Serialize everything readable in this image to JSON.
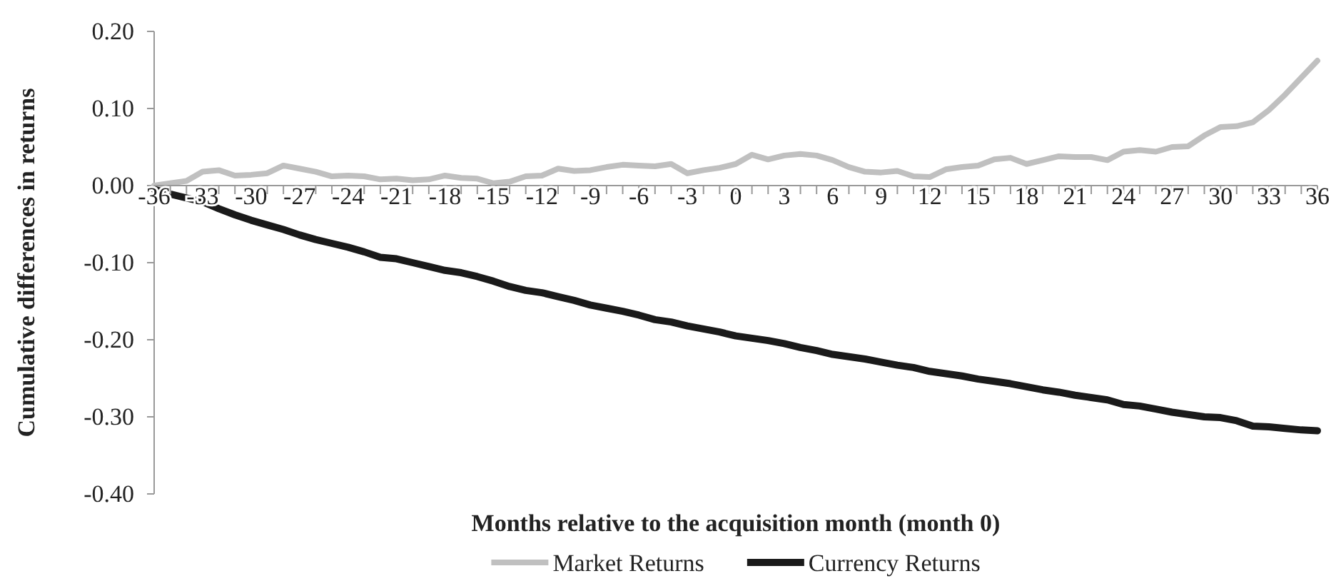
{
  "chart_data": {
    "type": "line",
    "xlabel": "Months relative to the acquisition month (month 0)",
    "ylabel": "Cumulative differences in returns",
    "x": [
      -36,
      -35,
      -34,
      -33,
      -32,
      -31,
      -30,
      -29,
      -28,
      -27,
      -26,
      -25,
      -24,
      -23,
      -22,
      -21,
      -20,
      -19,
      -18,
      -17,
      -16,
      -15,
      -14,
      -13,
      -12,
      -11,
      -10,
      -9,
      -8,
      -7,
      -6,
      -5,
      -4,
      -3,
      -2,
      -1,
      0,
      1,
      2,
      3,
      4,
      5,
      6,
      7,
      8,
      9,
      10,
      11,
      12,
      13,
      14,
      15,
      16,
      17,
      18,
      19,
      20,
      21,
      22,
      23,
      24,
      25,
      26,
      27,
      28,
      29,
      30,
      31,
      32,
      33,
      34,
      35,
      36
    ],
    "series": [
      {
        "name": "Market Returns",
        "color": "#c0c0c0",
        "values": [
          0.0,
          0.003,
          0.006,
          0.018,
          0.02,
          0.013,
          0.014,
          0.016,
          0.026,
          0.022,
          0.018,
          0.012,
          0.013,
          0.012,
          0.008,
          0.009,
          0.007,
          0.008,
          0.013,
          0.01,
          0.009,
          0.003,
          0.005,
          0.012,
          0.013,
          0.022,
          0.019,
          0.02,
          0.024,
          0.027,
          0.026,
          0.025,
          0.028,
          0.016,
          0.02,
          0.023,
          0.028,
          0.04,
          0.034,
          0.039,
          0.041,
          0.039,
          0.033,
          0.024,
          0.018,
          0.017,
          0.019,
          0.012,
          0.011,
          0.021,
          0.024,
          0.026,
          0.034,
          0.036,
          0.028,
          0.033,
          0.038,
          0.037,
          0.037,
          0.033,
          0.044,
          0.046,
          0.044,
          0.05,
          0.051,
          0.065,
          0.076,
          0.077,
          0.082,
          0.098,
          0.118,
          0.14,
          0.162
        ]
      },
      {
        "name": "Currency Returns",
        "color": "#1a1a1a",
        "values": [
          -0.005,
          -0.011,
          -0.016,
          -0.021,
          -0.03,
          -0.038,
          -0.045,
          -0.051,
          -0.057,
          -0.064,
          -0.07,
          -0.075,
          -0.08,
          -0.086,
          -0.093,
          -0.095,
          -0.1,
          -0.105,
          -0.11,
          -0.113,
          -0.118,
          -0.124,
          -0.131,
          -0.136,
          -0.139,
          -0.144,
          -0.149,
          -0.155,
          -0.159,
          -0.163,
          -0.168,
          -0.174,
          -0.177,
          -0.182,
          -0.186,
          -0.19,
          -0.195,
          -0.198,
          -0.201,
          -0.205,
          -0.21,
          -0.214,
          -0.219,
          -0.222,
          -0.225,
          -0.229,
          -0.233,
          -0.236,
          -0.241,
          -0.244,
          -0.247,
          -0.251,
          -0.254,
          -0.257,
          -0.261,
          -0.265,
          -0.268,
          -0.272,
          -0.275,
          -0.278,
          -0.284,
          -0.286,
          -0.29,
          -0.294,
          -0.297,
          -0.3,
          -0.301,
          -0.305,
          -0.312,
          -0.313,
          -0.315,
          -0.317,
          -0.318
        ]
      }
    ],
    "xlim": [
      -36,
      36
    ],
    "xticks": [
      -36,
      {
        "value": -35,
        "label": null
      },
      {
        "value": -34,
        "label": null
      },
      -33,
      {
        "value": -32,
        "label": null
      },
      {
        "value": -31,
        "label": null
      },
      -30,
      {
        "value": -29,
        "label": null
      },
      {
        "value": -28,
        "label": null
      },
      -27,
      {
        "value": -26,
        "label": null
      },
      {
        "value": -25,
        "label": null
      },
      -24,
      {
        "value": -23,
        "label": null
      },
      {
        "value": -22,
        "label": null
      },
      -21,
      {
        "value": -20,
        "label": null
      },
      {
        "value": -19,
        "label": null
      },
      -18,
      {
        "value": -17,
        "label": null
      },
      {
        "value": -16,
        "label": null
      },
      -15,
      {
        "value": -14,
        "label": null
      },
      {
        "value": -13,
        "label": null
      },
      -12,
      {
        "value": -11,
        "label": null
      },
      {
        "value": -10,
        "label": null
      },
      -9,
      {
        "value": -8,
        "label": null
      },
      {
        "value": -7,
        "label": null
      },
      -6,
      {
        "value": -5,
        "label": null
      },
      {
        "value": -4,
        "label": null
      },
      -3,
      {
        "value": -2,
        "label": null
      },
      {
        "value": -1,
        "label": null
      },
      0,
      {
        "value": 1,
        "label": null
      },
      {
        "value": 2,
        "label": null
      },
      3,
      {
        "value": 4,
        "label": null
      },
      {
        "value": 5,
        "label": null
      },
      6,
      {
        "value": 7,
        "label": null
      },
      {
        "value": 8,
        "label": null
      },
      9,
      {
        "value": 10,
        "label": null
      },
      {
        "value": 11,
        "label": null
      },
      12,
      {
        "value": 13,
        "label": null
      },
      {
        "value": 14,
        "label": null
      },
      15,
      {
        "value": 16,
        "label": null
      },
      {
        "value": 17,
        "label": null
      },
      18,
      {
        "value": 19,
        "label": null
      },
      {
        "value": 20,
        "label": null
      },
      21,
      {
        "value": 22,
        "label": null
      },
      {
        "value": 23,
        "label": null
      },
      24,
      {
        "value": 25,
        "label": null
      },
      {
        "value": 26,
        "label": null
      },
      27,
      {
        "value": 28,
        "label": null
      },
      {
        "value": 29,
        "label": null
      },
      30,
      {
        "value": 31,
        "label": null
      },
      {
        "value": 32,
        "label": null
      },
      33,
      {
        "value": 34,
        "label": null
      },
      {
        "value": 35,
        "label": null
      },
      36
    ],
    "ylim": [
      -0.4,
      0.2
    ],
    "yticks": [
      {
        "value": 0.2,
        "label": "0.20"
      },
      {
        "value": 0.1,
        "label": "0.10"
      },
      {
        "value": 0,
        "label": "0.00"
      },
      {
        "value": -0.1,
        "label": "-0.10"
      },
      {
        "value": -0.2,
        "label": "-0.20"
      },
      {
        "value": -0.3,
        "label": "-0.30"
      },
      {
        "value": -0.4,
        "label": "-0.40"
      }
    ],
    "grid": false,
    "legend": "bottom",
    "marker": "none",
    "line_style": "solid"
  }
}
